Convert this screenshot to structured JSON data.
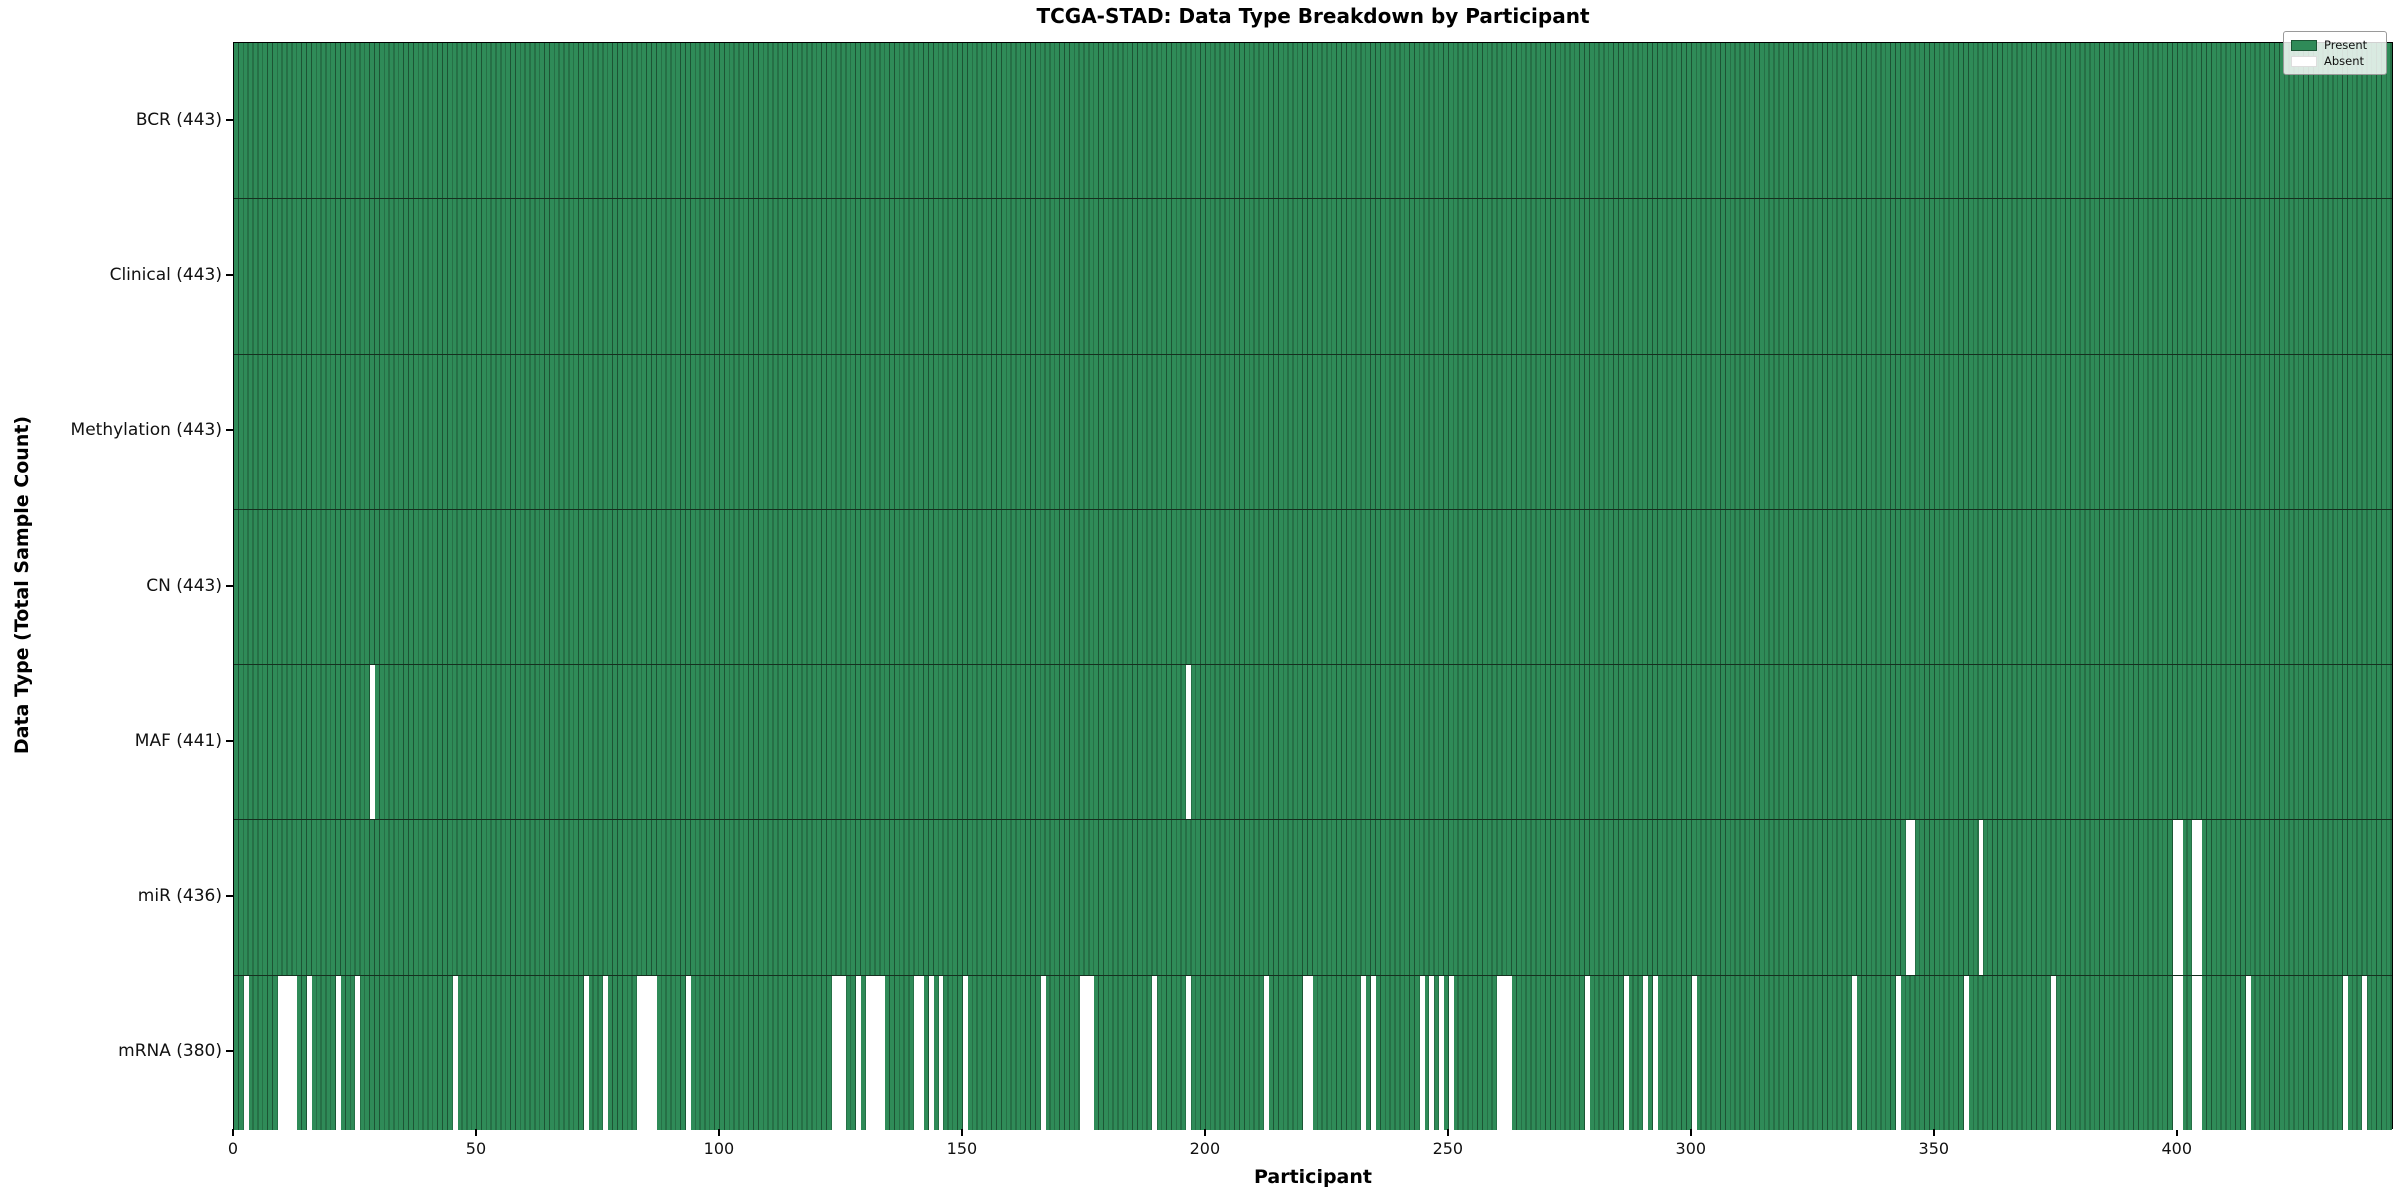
{
  "chart_data": {
    "type": "heatmap",
    "title": "TCGA-STAD: Data Type Breakdown by Participant",
    "xlabel": "Participant",
    "ylabel": "Data Type (Total Sample Count)",
    "n_participants": 443,
    "xlim": [
      0,
      444.5
    ],
    "x_ticks": [
      0,
      50,
      100,
      150,
      200,
      250,
      300,
      350,
      400
    ],
    "grid": false,
    "legend_position": "upper right",
    "legend": [
      {
        "label": "Present",
        "color": "#2f8b58"
      },
      {
        "label": "Absent",
        "color": "#ffffff"
      }
    ],
    "colors": {
      "present_fill": "#2f8b58",
      "cell_edge": "#1c5434",
      "absent_fill": "#ffffff",
      "row_separator": "#15301f",
      "axis": "#000000"
    },
    "rows": [
      {
        "label": "BCR (443)",
        "data_type": "BCR",
        "total": 443,
        "absent_participants": []
      },
      {
        "label": "Clinical (443)",
        "data_type": "Clinical",
        "total": 443,
        "absent_participants": []
      },
      {
        "label": "Methylation (443)",
        "data_type": "Methylation",
        "total": 443,
        "absent_participants": []
      },
      {
        "label": "CN (443)",
        "data_type": "CN",
        "total": 443,
        "absent_participants": []
      },
      {
        "label": "MAF (441)",
        "data_type": "MAF",
        "total": 441,
        "absent_participants": [
          28,
          196
        ]
      },
      {
        "label": "miR (436)",
        "data_type": "miR",
        "total": 436,
        "absent_participants": [
          344,
          345,
          359,
          399,
          400,
          403,
          404
        ]
      },
      {
        "label": "mRNA (380)",
        "data_type": "mRNA",
        "total": 380,
        "absent_participants": [
          2,
          9,
          10,
          11,
          12,
          15,
          21,
          25,
          45,
          72,
          76,
          83,
          84,
          85,
          86,
          93,
          123,
          124,
          125,
          128,
          130,
          131,
          132,
          133,
          140,
          141,
          143,
          145,
          150,
          166,
          174,
          175,
          176,
          189,
          196,
          212,
          220,
          221,
          232,
          234,
          244,
          246,
          248,
          250,
          260,
          261,
          262,
          278,
          286,
          290,
          292,
          300,
          333,
          342,
          356,
          374,
          399,
          400,
          403,
          404,
          414,
          434,
          438
        ]
      }
    ]
  }
}
